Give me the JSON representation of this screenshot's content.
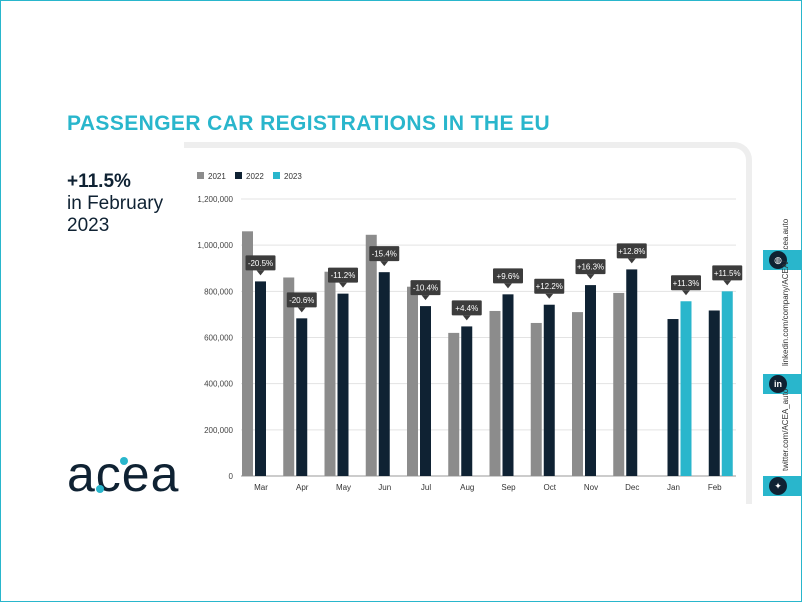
{
  "title": "PASSENGER CAR REGISTRATIONS IN THE EU",
  "headline": {
    "pct": "+11.5%",
    "line1": "in February",
    "line2": "2023"
  },
  "logo": {
    "text": "acea"
  },
  "social": {
    "website": "acea.auto",
    "linkedin": "linkedin.com/company/ACEA/",
    "twitter": "twitter.com/ACEA_auto",
    "icons": [
      "globe-icon",
      "linkedin-icon",
      "twitter-icon"
    ]
  },
  "colors": {
    "accent": "#29b6cc",
    "y2021": "#8c8c8c",
    "y2022": "#0f2233",
    "y2023": "#29b6cc",
    "label_bg": "#3c3c3c"
  },
  "chart_data": {
    "type": "bar",
    "categories": [
      "Mar",
      "Apr",
      "May",
      "Jun",
      "Jul",
      "Aug",
      "Sep",
      "Oct",
      "Nov",
      "Dec",
      "Jan",
      "Feb"
    ],
    "series": [
      {
        "name": "2021",
        "values": [
          1060000,
          860000,
          885000,
          1045000,
          820000,
          620000,
          715000,
          663000,
          710000,
          793000,
          null,
          null
        ]
      },
      {
        "name": "2022",
        "values": [
          843000,
          683000,
          790000,
          883000,
          736000,
          648000,
          787000,
          742000,
          827000,
          895000,
          680000,
          717000
        ]
      },
      {
        "name": "2023",
        "values": [
          null,
          null,
          null,
          null,
          null,
          null,
          null,
          null,
          null,
          null,
          757000,
          800000
        ]
      }
    ],
    "change_labels": [
      "-20.5%",
      "-20.6%",
      "-11.2%",
      "-15.4%",
      "-10.4%",
      "+4.4%",
      "+9.6%",
      "+12.2%",
      "+16.3%",
      "+12.8%",
      "+11.3%",
      "+11.5%"
    ],
    "y_ticks": [
      "0",
      "200,000",
      "400,000",
      "600,000",
      "800,000",
      "1,000,000",
      "1,200,000"
    ],
    "ylim": [
      0,
      1200000
    ],
    "grid": true,
    "legend_position": "top-left"
  }
}
